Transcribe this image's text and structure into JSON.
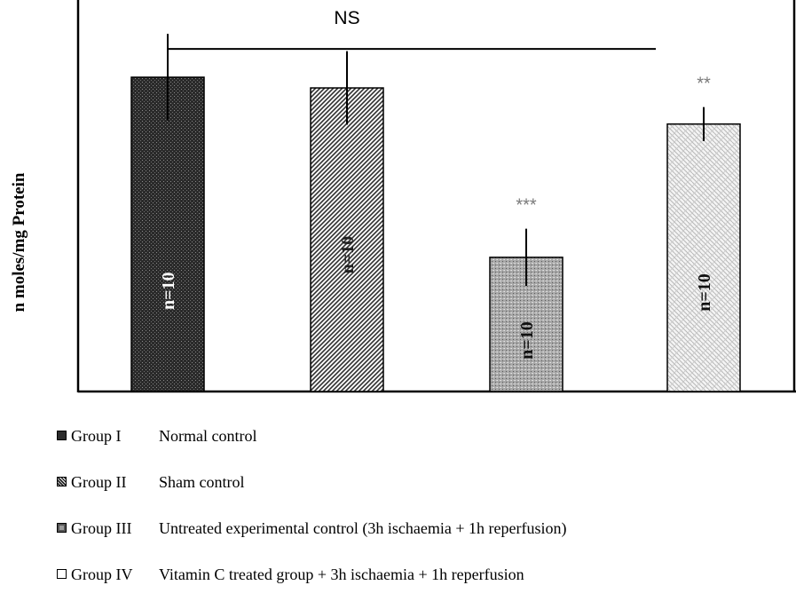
{
  "chart_data": {
    "type": "bar",
    "title": "",
    "xlabel": "",
    "ylabel": "n moles/mg Protein",
    "ylim": [
      0,
      100
    ],
    "categories": [
      "Group I",
      "Group II",
      "Group III",
      "Group IV"
    ],
    "values": [
      100,
      96.6,
      42.7,
      85.1
    ],
    "errors": [
      13.8,
      11.7,
      9.1,
      5.4
    ],
    "bar_labels": [
      "n=10",
      "n=10",
      "n=10",
      "n=10"
    ],
    "significance": [
      "",
      "",
      "***",
      "**"
    ],
    "bracket": {
      "label": "NS",
      "from_group": "Group I",
      "to_group": "Group III",
      "level": 109
    },
    "patterns": [
      "dark-dotted",
      "diagonal-hatch",
      "light-dotted",
      "brick"
    ],
    "legend": [
      {
        "group": "Group I",
        "description": "Normal control"
      },
      {
        "group": "Group II",
        "description": "Sham control"
      },
      {
        "group": "Group III",
        "description": "Untreated experimental control (3h ischaemia + 1h reperfusion)"
      },
      {
        "group": "Group IV",
        "description": "Vitamin C treated group + 3h ischaemia + 1h reperfusion"
      }
    ],
    "legend_position": "bottom"
  },
  "colors": {
    "bar1": "#2b2b2b",
    "bar2_hatch": "#333333",
    "bar3": "#9a9a9a",
    "bar4": "#f2f2f2",
    "axis": "#000000",
    "star": "#7a7a7a"
  }
}
